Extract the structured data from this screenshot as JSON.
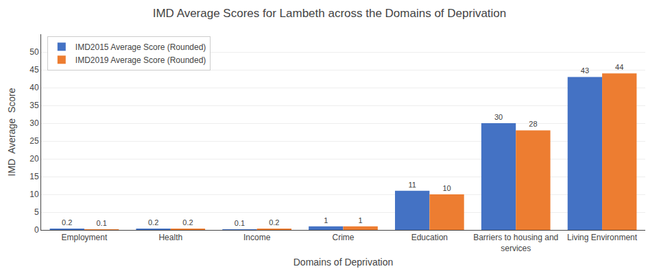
{
  "chart_data": {
    "type": "bar",
    "title": "IMD Average Scores for Lambeth across the Domains of Deprivation",
    "xlabel": "Domains of Deprivation",
    "ylabel": "IMD  Average  Score",
    "categories": [
      "Employment",
      "Health",
      "Income",
      "Crime",
      "Education",
      "Barriers to housing and\nservices",
      "Living Environment"
    ],
    "series": [
      {
        "name": "IMD2015 Average Score (Rounded)",
        "color": "#4472C4",
        "values": [
          0.2,
          0.2,
          0.1,
          1,
          11,
          30,
          43
        ]
      },
      {
        "name": "IMD2019 Average Score (Rounded)",
        "color": "#ED7D31",
        "values": [
          0.1,
          0.2,
          0.2,
          1,
          10,
          28,
          44
        ]
      }
    ],
    "ylim": [
      0,
      55
    ],
    "yticks": [
      0,
      5,
      10,
      15,
      20,
      25,
      30,
      35,
      40,
      45,
      50
    ],
    "grid": true,
    "legend": "upper left",
    "data_labels": true
  }
}
